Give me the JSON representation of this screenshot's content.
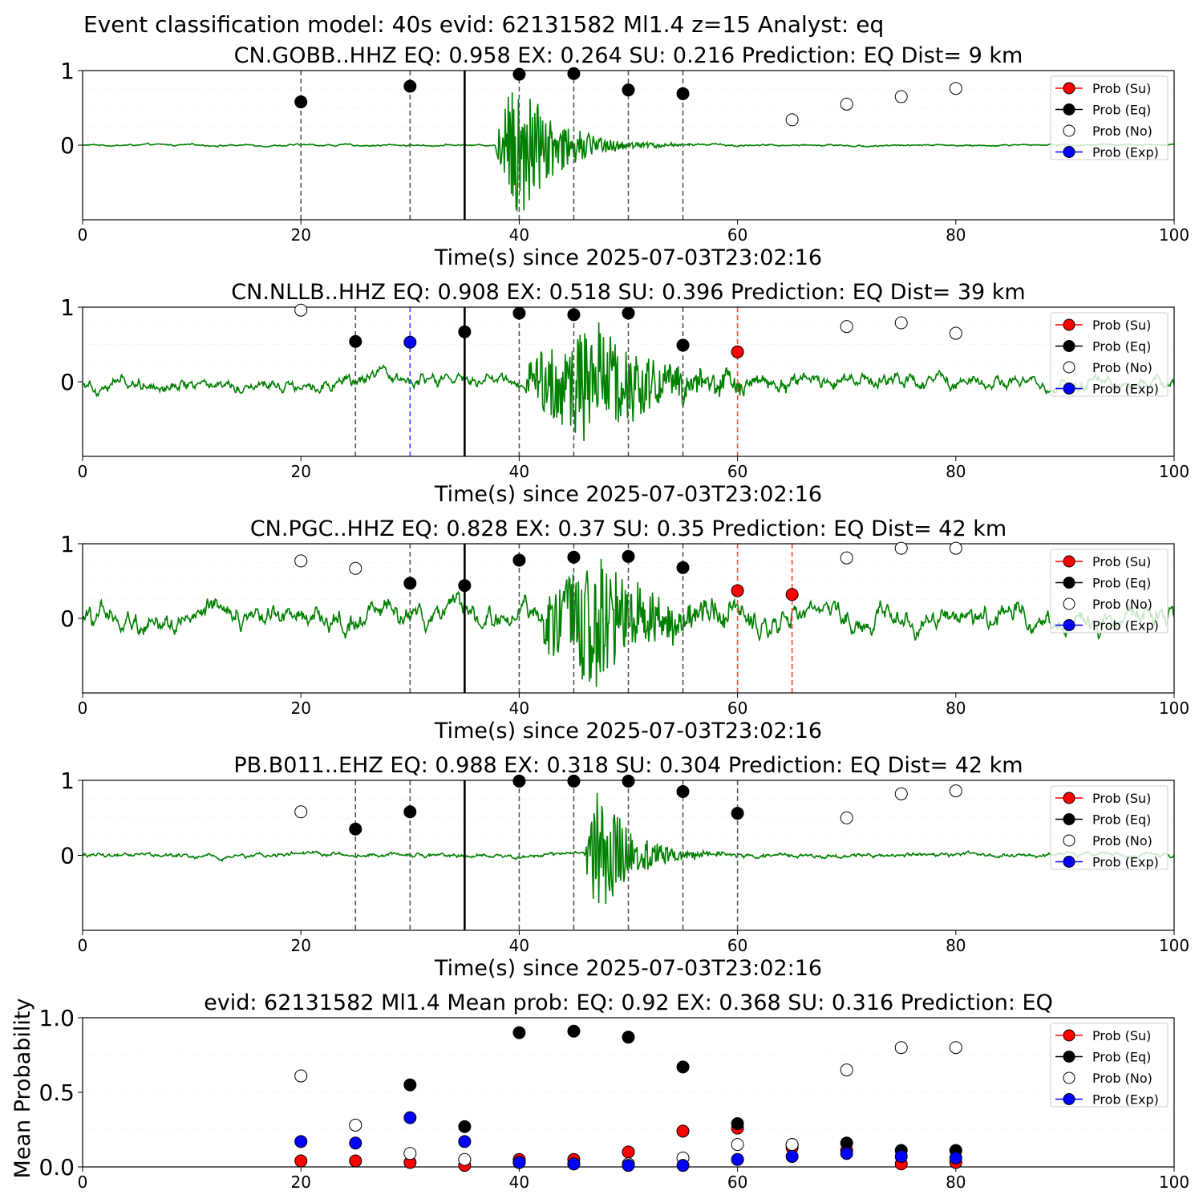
{
  "suptitle": "Event classification model: 40s evid: 62131582 Ml1.4 z=15 Analyst: eq",
  "legend_labels": [
    "Prob (Su)",
    "Prob (Eq)",
    "Prob (No)",
    "Prob (Exp)"
  ],
  "colors": {
    "su": "#ff0000",
    "eq": "#000000",
    "no": "#ffffff",
    "exp": "#0000ff",
    "trace": "#008000",
    "grid": "#e6e6e6"
  },
  "chart_data": [
    {
      "type": "line",
      "title": "CN.GOBB..HHZ   EQ: 0.958  EX: 0.264  SU: 0.216   Prediction: EQ    Dist= 9 km",
      "xlabel": "Time(s) since 2025-07-03T23:02:16",
      "xlim": [
        0,
        100
      ],
      "ylim": [
        -1,
        1
      ],
      "xticks": [
        "0",
        "20",
        "40",
        "60",
        "80",
        "100"
      ],
      "yticks": [
        "0",
        "1"
      ],
      "grid": "horizontal",
      "legend": "top-right",
      "waveform": {
        "onset": 37.8,
        "peak_time": 40,
        "noise": 0.02,
        "peak_amp": 1.0,
        "decay": 3.5
      },
      "pick_time": 35,
      "dashed_lines": [
        {
          "x": 20,
          "cls": "eq"
        },
        {
          "x": 30,
          "cls": "eq"
        },
        {
          "x": 40,
          "cls": "eq"
        },
        {
          "x": 45,
          "cls": "eq"
        },
        {
          "x": 50,
          "cls": "eq"
        },
        {
          "x": 55,
          "cls": "eq"
        }
      ],
      "points": [
        {
          "cls": "eq",
          "x": 20,
          "y": 0.58
        },
        {
          "cls": "eq",
          "x": 30,
          "y": 0.79
        },
        {
          "cls": "eq",
          "x": 40,
          "y": 0.95
        },
        {
          "cls": "eq",
          "x": 45,
          "y": 0.96
        },
        {
          "cls": "eq",
          "x": 50,
          "y": 0.74
        },
        {
          "cls": "eq",
          "x": 55,
          "y": 0.69
        },
        {
          "cls": "no",
          "x": 65,
          "y": 0.34
        },
        {
          "cls": "no",
          "x": 70,
          "y": 0.55
        },
        {
          "cls": "no",
          "x": 75,
          "y": 0.65
        },
        {
          "cls": "no",
          "x": 80,
          "y": 0.76
        }
      ]
    },
    {
      "type": "line",
      "title": "CN.NLLB..HHZ   EQ: 0.908  EX: 0.518  SU: 0.396   Prediction: EQ    Dist= 39 km",
      "xlabel": "Time(s) since 2025-07-03T23:02:16",
      "xlim": [
        0,
        100
      ],
      "ylim": [
        -1,
        1
      ],
      "xticks": [
        "0",
        "20",
        "40",
        "60",
        "80",
        "100"
      ],
      "yticks": [
        "0",
        "1"
      ],
      "grid": "horizontal",
      "legend": "top-right",
      "waveform": {
        "onset": 40.5,
        "peak_time": 47,
        "noise": 0.15,
        "peak_amp": 0.8,
        "decay": 6
      },
      "pick_time": 35,
      "dashed_lines": [
        {
          "x": 25,
          "cls": "eq"
        },
        {
          "x": 30,
          "cls": "exp"
        },
        {
          "x": 40,
          "cls": "eq"
        },
        {
          "x": 45,
          "cls": "eq"
        },
        {
          "x": 50,
          "cls": "eq"
        },
        {
          "x": 55,
          "cls": "eq"
        },
        {
          "x": 60,
          "cls": "su"
        }
      ],
      "points": [
        {
          "cls": "no",
          "x": 20,
          "y": 0.96
        },
        {
          "cls": "eq",
          "x": 25,
          "y": 0.54
        },
        {
          "cls": "exp",
          "x": 30,
          "y": 0.53
        },
        {
          "cls": "eq",
          "x": 35,
          "y": 0.67
        },
        {
          "cls": "eq",
          "x": 40,
          "y": 0.92
        },
        {
          "cls": "eq",
          "x": 45,
          "y": 0.9
        },
        {
          "cls": "eq",
          "x": 50,
          "y": 0.92
        },
        {
          "cls": "eq",
          "x": 55,
          "y": 0.49
        },
        {
          "cls": "su",
          "x": 60,
          "y": 0.4
        },
        {
          "cls": "no",
          "x": 70,
          "y": 0.74
        },
        {
          "cls": "no",
          "x": 75,
          "y": 0.79
        },
        {
          "cls": "no",
          "x": 80,
          "y": 0.65
        }
      ]
    },
    {
      "type": "line",
      "title": "CN.PGC..HHZ   EQ: 0.828  EX: 0.37  SU: 0.35   Prediction: EQ    Dist= 42 km",
      "xlabel": "Time(s) since 2025-07-03T23:02:16",
      "xlim": [
        0,
        100
      ],
      "ylim": [
        -1,
        1
      ],
      "xticks": [
        "0",
        "20",
        "40",
        "60",
        "80",
        "100"
      ],
      "yticks": [
        "0",
        "1"
      ],
      "grid": "horizontal",
      "legend": "top-right",
      "waveform": {
        "onset": 42,
        "peak_time": 47.5,
        "noise": 0.25,
        "peak_amp": 0.9,
        "decay": 5
      },
      "pick_time": 35,
      "dashed_lines": [
        {
          "x": 30,
          "cls": "eq"
        },
        {
          "x": 40,
          "cls": "eq"
        },
        {
          "x": 45,
          "cls": "eq"
        },
        {
          "x": 50,
          "cls": "eq"
        },
        {
          "x": 55,
          "cls": "eq"
        },
        {
          "x": 60,
          "cls": "su"
        },
        {
          "x": 65,
          "cls": "su"
        }
      ],
      "points": [
        {
          "cls": "no",
          "x": 20,
          "y": 0.77
        },
        {
          "cls": "no",
          "x": 25,
          "y": 0.67
        },
        {
          "cls": "eq",
          "x": 30,
          "y": 0.47
        },
        {
          "cls": "eq",
          "x": 35,
          "y": 0.44
        },
        {
          "cls": "eq",
          "x": 40,
          "y": 0.78
        },
        {
          "cls": "eq",
          "x": 45,
          "y": 0.82
        },
        {
          "cls": "eq",
          "x": 50,
          "y": 0.83
        },
        {
          "cls": "eq",
          "x": 55,
          "y": 0.68
        },
        {
          "cls": "su",
          "x": 60,
          "y": 0.37
        },
        {
          "cls": "su",
          "x": 65,
          "y": 0.32
        },
        {
          "cls": "no",
          "x": 70,
          "y": 0.81
        },
        {
          "cls": "no",
          "x": 75,
          "y": 0.94
        },
        {
          "cls": "no",
          "x": 80,
          "y": 0.94
        }
      ]
    },
    {
      "type": "line",
      "title": "PB.B011..EHZ   EQ: 0.988  EX: 0.318  SU: 0.304   Prediction: EQ    Dist= 42 km",
      "xlabel": "Time(s) since 2025-07-03T23:02:16",
      "xlim": [
        0,
        100
      ],
      "ylim": [
        -1,
        1
      ],
      "xticks": [
        "0",
        "20",
        "40",
        "60",
        "80",
        "100"
      ],
      "yticks": [
        "0",
        "1"
      ],
      "grid": "horizontal",
      "legend": "top-right",
      "waveform": {
        "onset": 46,
        "peak_time": 47.3,
        "noise": 0.05,
        "peak_amp": 0.9,
        "decay": 3
      },
      "pick_time": 35,
      "dashed_lines": [
        {
          "x": 25,
          "cls": "eq"
        },
        {
          "x": 30,
          "cls": "eq"
        },
        {
          "x": 40,
          "cls": "eq"
        },
        {
          "x": 45,
          "cls": "eq"
        },
        {
          "x": 50,
          "cls": "eq"
        },
        {
          "x": 55,
          "cls": "eq"
        },
        {
          "x": 60,
          "cls": "eq"
        }
      ],
      "points": [
        {
          "cls": "no",
          "x": 20,
          "y": 0.58
        },
        {
          "cls": "eq",
          "x": 25,
          "y": 0.35
        },
        {
          "cls": "eq",
          "x": 30,
          "y": 0.58
        },
        {
          "cls": "eq",
          "x": 40,
          "y": 0.99
        },
        {
          "cls": "eq",
          "x": 45,
          "y": 0.99
        },
        {
          "cls": "eq",
          "x": 50,
          "y": 0.99
        },
        {
          "cls": "eq",
          "x": 55,
          "y": 0.85
        },
        {
          "cls": "eq",
          "x": 60,
          "y": 0.56
        },
        {
          "cls": "no",
          "x": 70,
          "y": 0.5
        },
        {
          "cls": "no",
          "x": 75,
          "y": 0.82
        },
        {
          "cls": "no",
          "x": 80,
          "y": 0.86
        }
      ]
    },
    {
      "type": "scatter",
      "title": "evid: 62131582  Ml1.4   Mean prob:   EQ: 0.92  EX: 0.368  SU: 0.316   Prediction: EQ",
      "ylabel": "Mean Probability",
      "xlim": [
        0,
        100
      ],
      "ylim": [
        0,
        1
      ],
      "xticks": [
        "0",
        "20",
        "40",
        "60",
        "80",
        "100"
      ],
      "yticks": [
        "0.0",
        "0.5",
        "1.0"
      ],
      "grid": "horizontal",
      "legend": "top-right",
      "series": [
        {
          "name": "Prob (Su)",
          "cls": "su",
          "x": [
            20,
            25,
            30,
            35,
            40,
            45,
            50,
            55,
            60,
            65,
            70,
            75,
            80
          ],
          "y": [
            0.04,
            0.04,
            0.03,
            0.01,
            0.05,
            0.05,
            0.1,
            0.24,
            0.26,
            0.13,
            0.11,
            0.02,
            0.03
          ]
        },
        {
          "name": "Prob (Eq)",
          "cls": "eq",
          "x": [
            30,
            35,
            40,
            45,
            50,
            55,
            60,
            65,
            70,
            75,
            80
          ],
          "y": [
            0.55,
            0.27,
            0.9,
            0.91,
            0.87,
            0.67,
            0.29,
            0.15,
            0.16,
            0.11,
            0.11
          ]
        },
        {
          "name": "Prob (No)",
          "cls": "no",
          "x": [
            20,
            25,
            30,
            35,
            40,
            45,
            50,
            55,
            60,
            65,
            70,
            75,
            80
          ],
          "y": [
            0.61,
            0.28,
            0.09,
            0.05,
            0.03,
            0.02,
            0.02,
            0.06,
            0.15,
            0.15,
            0.65,
            0.8,
            0.8
          ]
        },
        {
          "name": "Prob (Exp)",
          "cls": "exp",
          "x": [
            20,
            25,
            30,
            35,
            40,
            45,
            50,
            55,
            60,
            65,
            70,
            75,
            80
          ],
          "y": [
            0.17,
            0.16,
            0.33,
            0.17,
            0.03,
            0.02,
            0.01,
            0.01,
            0.05,
            0.07,
            0.09,
            0.07,
            0.06
          ]
        }
      ]
    }
  ]
}
